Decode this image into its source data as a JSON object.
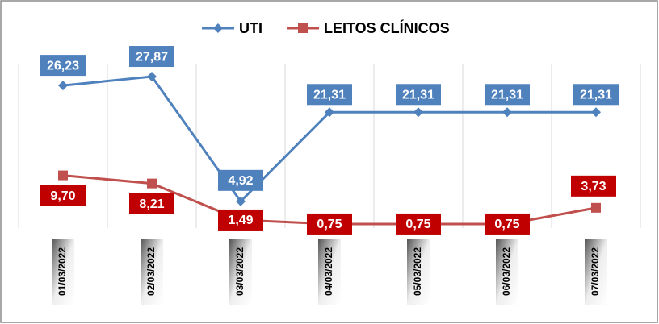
{
  "chart_data": {
    "type": "line",
    "categories": [
      "01/03/2022",
      "02/03/2022",
      "03/03/2022",
      "04/03/2022",
      "05/03/2022",
      "06/03/2022",
      "07/03/2022"
    ],
    "series": [
      {
        "name": "UTI",
        "color": "#4f81bd",
        "label_color": "#4f81bd",
        "values": [
          26.23,
          27.87,
          4.92,
          21.31,
          21.31,
          21.31,
          21.31
        ],
        "value_labels": [
          "26,23",
          "27,87",
          "4,92",
          "21,31",
          "21,31",
          "21,31",
          "21,31"
        ]
      },
      {
        "name": "LEITOS CLÍNICOS",
        "color": "#c0504d",
        "label_color": "#c00000",
        "values": [
          9.7,
          8.21,
          1.49,
          0.75,
          0.75,
          0.75,
          3.73
        ],
        "value_labels": [
          "9,70",
          "8,21",
          "1,49",
          "0,75",
          "0,75",
          "0,75",
          "3,73"
        ]
      }
    ],
    "legend": "top"
  }
}
